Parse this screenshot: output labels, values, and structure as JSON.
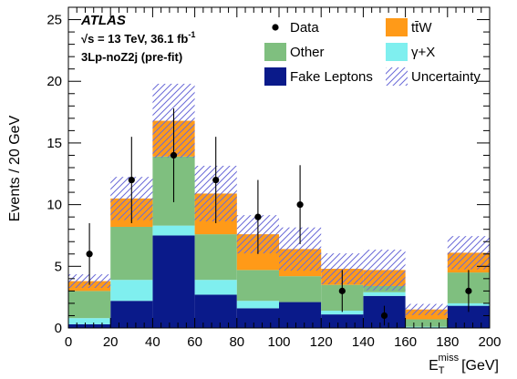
{
  "chart_data": {
    "type": "bar",
    "stacked": true,
    "bin_edges": [
      0,
      20,
      40,
      60,
      80,
      100,
      120,
      140,
      160,
      180,
      200
    ],
    "xlabel_main": "E",
    "xlabel_sub": "T",
    "xlabel_sup": "miss",
    "xlabel_unit": "[GeV]",
    "ylabel": "Events / 20 GeV",
    "xlim": [
      0,
      200
    ],
    "ylim": [
      0,
      26
    ],
    "x_ticks": [
      0,
      20,
      40,
      60,
      80,
      100,
      120,
      140,
      160,
      180,
      200
    ],
    "y_ticks": [
      0,
      5,
      10,
      15,
      20,
      25
    ],
    "annotations": {
      "experiment": "ATLAS",
      "energy_lumi_pre": "√s = 13 TeV, 36.1 fb",
      "energy_lumi_sup": "-1",
      "region": "3Lp-noZ2j (pre-fit)"
    },
    "series": [
      {
        "name": "Fake Leptons",
        "color": "#0a1a8a",
        "values": [
          0.3,
          2.2,
          7.5,
          2.7,
          1.6,
          2.1,
          1.1,
          2.6,
          0.0,
          1.8
        ]
      },
      {
        "name": "γ+X",
        "color": "#7fefef",
        "values": [
          0.5,
          1.7,
          0.8,
          1.2,
          0.6,
          0.0,
          0.3,
          0.3,
          0.1,
          0.2
        ]
      },
      {
        "name": "Other",
        "color": "#7fbf7f",
        "values": [
          2.2,
          4.3,
          5.6,
          3.7,
          2.5,
          2.1,
          2.1,
          0.5,
          0.6,
          2.5
        ]
      },
      {
        "name": "tt̄W",
        "color": "#ff9a18",
        "values": [
          0.8,
          2.3,
          2.9,
          3.3,
          2.9,
          2.2,
          1.3,
          1.3,
          0.8,
          1.6
        ]
      }
    ],
    "uncertainty": {
      "name": "Uncertainty",
      "color": "#6a6ad8",
      "half_width": [
        0.55,
        1.75,
        3.0,
        2.25,
        1.55,
        1.75,
        1.25,
        1.65,
        0.45,
        1.35
      ]
    },
    "data": {
      "name": "Data",
      "x": [
        10,
        30,
        50,
        70,
        90,
        110,
        130,
        150,
        170,
        190
      ],
      "y": [
        6,
        12,
        14,
        12,
        9,
        10,
        3,
        1,
        0,
        3
      ],
      "err_low": [
        2.5,
        3.5,
        3.8,
        3.5,
        3.0,
        3.2,
        1.7,
        0.8,
        0.0,
        1.7
      ],
      "err_high": [
        2.5,
        3.5,
        3.8,
        3.5,
        3.0,
        3.2,
        1.7,
        0.8,
        0.0,
        1.7
      ],
      "plotted": [
        true,
        true,
        true,
        true,
        true,
        true,
        true,
        true,
        false,
        true
      ]
    },
    "legend_position": "top-right",
    "legend_order": [
      "Data",
      "tt̄W",
      "Other",
      "γ+X",
      "Fake Leptons",
      "Uncertainty"
    ]
  }
}
